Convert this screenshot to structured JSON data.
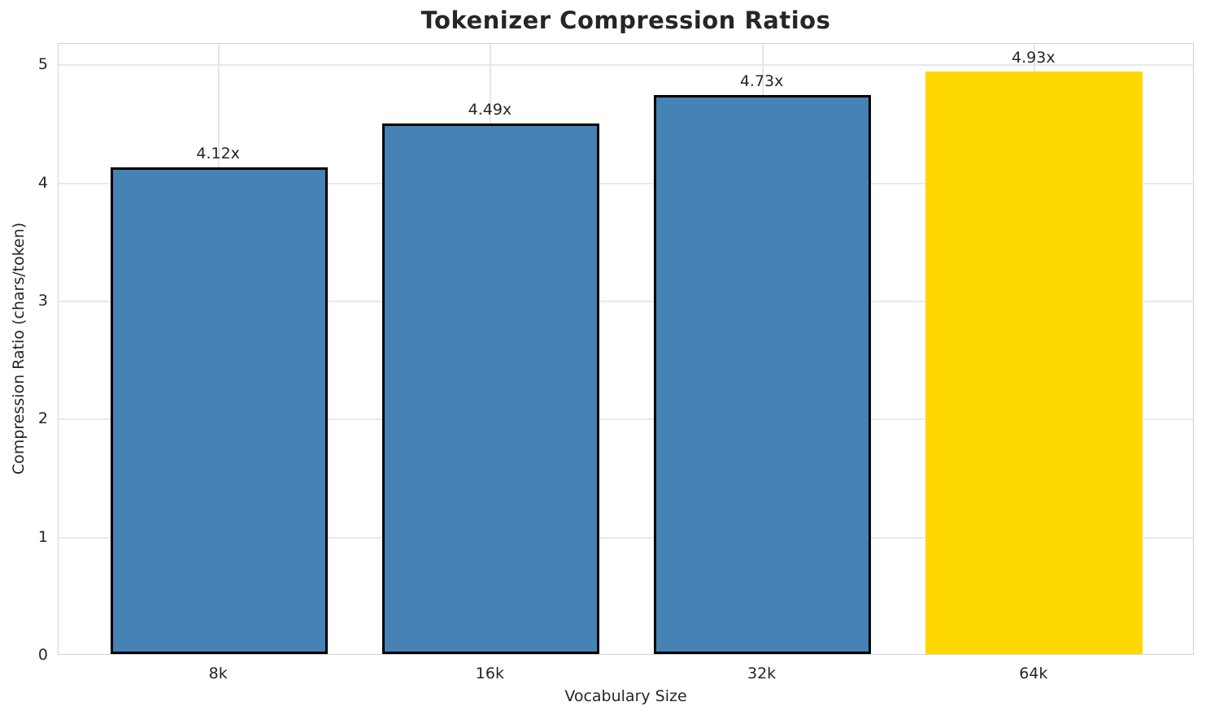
{
  "chart_data": {
    "type": "bar",
    "title": "Tokenizer Compression Ratios",
    "xlabel": "Vocabulary Size",
    "ylabel": "Compression Ratio (chars/token)",
    "categories": [
      "8k",
      "16k",
      "32k",
      "64k"
    ],
    "values": [
      4.12,
      4.49,
      4.73,
      4.93
    ],
    "bar_labels": [
      "4.12x",
      "4.49x",
      "4.73x",
      "4.93x"
    ],
    "bar_colors": [
      "#4682b4",
      "#4682b4",
      "#4682b4",
      "#ffd700"
    ],
    "bar_edge_colors": [
      "#000000",
      "#000000",
      "#000000",
      null
    ],
    "y_ticks": [
      0,
      1,
      2,
      3,
      4,
      5
    ],
    "ylim": [
      0,
      5.18
    ],
    "bar_width_fraction": 0.8,
    "grid": "both",
    "legend": "none",
    "highlight": {
      "category": "64k",
      "color": "#ffd700"
    }
  },
  "style": {
    "background_color": "#ffffff",
    "spine_color": "#d2d2d2",
    "grid_color_horizontal": "#e9e9e9",
    "grid_color_vertical": "#e6e6e6",
    "text_color": "#262626",
    "bar_blue": "#4682b4",
    "bar_gold": "#ffd700",
    "bar_edge_color": "#000000"
  }
}
